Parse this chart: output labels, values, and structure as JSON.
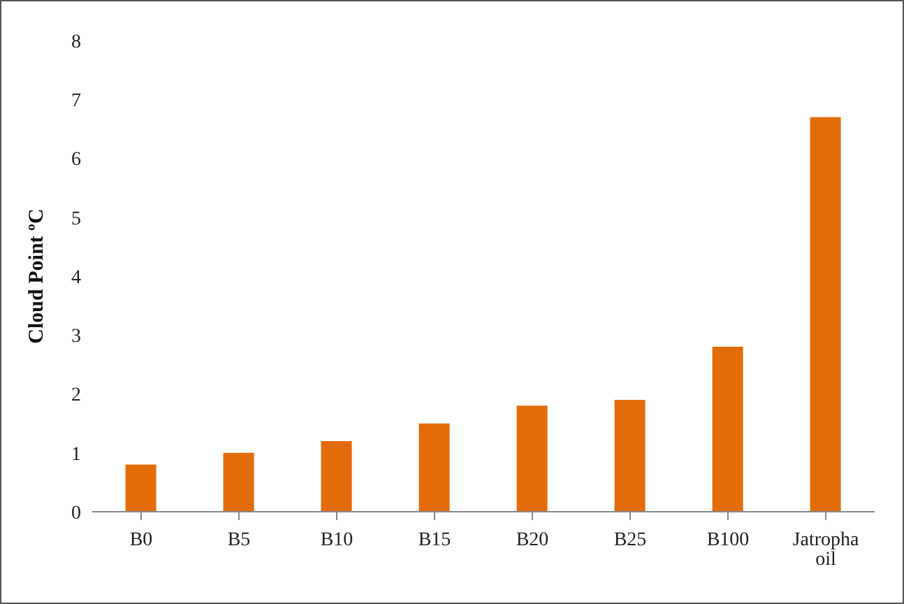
{
  "chart_data": {
    "type": "bar",
    "ylabel": "Cloud Point ºC",
    "categories": [
      "B0",
      "B5",
      "B10",
      "B15",
      "B20",
      "B25",
      "B100",
      "Jatropha oil"
    ],
    "values": [
      0.8,
      1.0,
      1.2,
      1.5,
      1.8,
      1.9,
      2.8,
      6.7
    ],
    "color": "#e36c0a",
    "ylim": [
      0,
      8
    ],
    "yticks": [
      0,
      1,
      2,
      3,
      4,
      5,
      6,
      7,
      8
    ],
    "grid": false,
    "legend": false
  }
}
